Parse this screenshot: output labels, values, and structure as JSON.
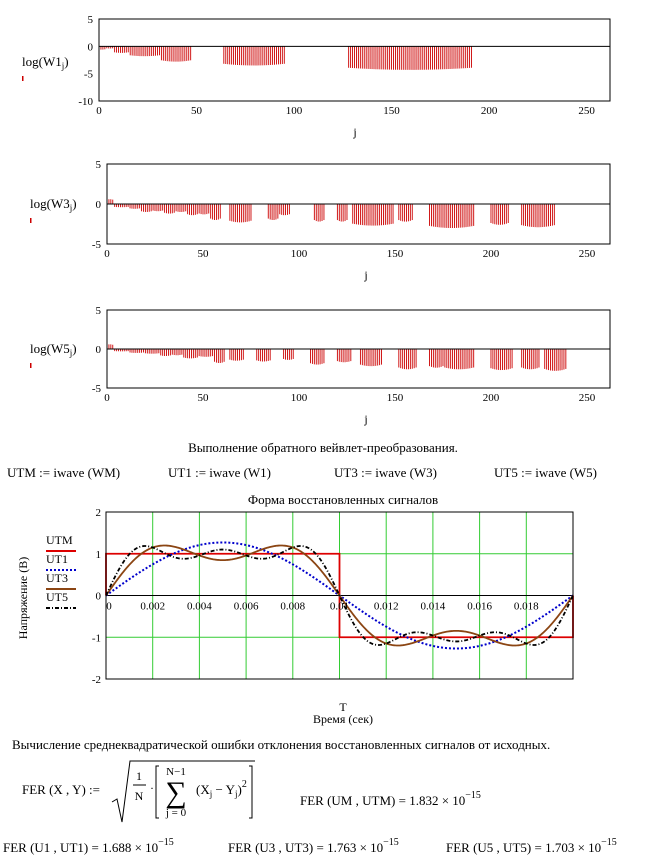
{
  "chart_data": [
    {
      "type": "bar",
      "name": "W1",
      "ylabel_func": "log",
      "ylabel_arg": "W1",
      "ylabel_sub": "j",
      "xlabel": "j",
      "xlim": [
        0,
        262
      ],
      "ylim": [
        -10,
        5
      ],
      "xticks": [
        "0",
        "50",
        "100",
        "150",
        "200",
        "250"
      ],
      "yticks": [
        "5",
        "0",
        "-5",
        "-10"
      ],
      "color": "#cc0000",
      "segments": [
        {
          "from": 0,
          "to": 3,
          "depth": 0.6
        },
        {
          "from": 4,
          "to": 7,
          "depth": 0.4
        },
        {
          "from": 8,
          "to": 15,
          "depth": 1.2
        },
        {
          "from": 16,
          "to": 31,
          "depth": 1.8
        },
        {
          "from": 32,
          "to": 47,
          "depth": 2.8
        },
        {
          "from": 64,
          "to": 95,
          "depth": 3.5
        },
        {
          "from": 128,
          "to": 191,
          "depth": 4.3
        }
      ]
    },
    {
      "type": "bar",
      "name": "W3",
      "ylabel_func": "log",
      "ylabel_arg": "W3",
      "ylabel_sub": "j",
      "xlabel": "j",
      "xlim": [
        0,
        262
      ],
      "ylim": [
        -5,
        5
      ],
      "xticks": [
        "0",
        "50",
        "100",
        "150",
        "200",
        "250"
      ],
      "yticks": [
        "5",
        "0",
        "-5"
      ],
      "color": "#cc0000",
      "segments": [
        {
          "from": 0,
          "to": 3,
          "depth": -0.6
        },
        {
          "from": 4,
          "to": 11,
          "depth": 0.4
        },
        {
          "from": 12,
          "to": 17,
          "depth": 0.6
        },
        {
          "from": 18,
          "to": 23,
          "depth": 1.0
        },
        {
          "from": 24,
          "to": 29,
          "depth": 0.9
        },
        {
          "from": 30,
          "to": 35,
          "depth": 1.2
        },
        {
          "from": 36,
          "to": 41,
          "depth": 1.0
        },
        {
          "from": 42,
          "to": 47,
          "depth": 1.4
        },
        {
          "from": 48,
          "to": 53,
          "depth": 1.3
        },
        {
          "from": 54,
          "to": 59,
          "depth": 2.0
        },
        {
          "from": 64,
          "to": 75,
          "depth": 2.3
        },
        {
          "from": 84,
          "to": 89,
          "depth": 2.0
        },
        {
          "from": 90,
          "to": 95,
          "depth": 1.4
        },
        {
          "from": 108,
          "to": 113,
          "depth": 2.2
        },
        {
          "from": 120,
          "to": 125,
          "depth": 2.2
        },
        {
          "from": 128,
          "to": 149,
          "depth": 2.7
        },
        {
          "from": 152,
          "to": 159,
          "depth": 2.2
        },
        {
          "from": 168,
          "to": 191,
          "depth": 3.0
        },
        {
          "from": 200,
          "to": 209,
          "depth": 2.6
        },
        {
          "from": 216,
          "to": 233,
          "depth": 2.9
        }
      ]
    },
    {
      "type": "bar",
      "name": "W5",
      "ylabel_func": "log",
      "ylabel_arg": "W5",
      "ylabel_sub": "j",
      "xlabel": "j",
      "xlim": [
        0,
        262
      ],
      "ylim": [
        -5,
        5
      ],
      "xticks": [
        "0",
        "50",
        "100",
        "150",
        "200",
        "250"
      ],
      "yticks": [
        "5",
        "0",
        "-5"
      ],
      "color": "#cc0000",
      "segments": [
        {
          "from": 0,
          "to": 3,
          "depth": -0.6
        },
        {
          "from": 4,
          "to": 11,
          "depth": 0.3
        },
        {
          "from": 12,
          "to": 19,
          "depth": 0.5
        },
        {
          "from": 20,
          "to": 27,
          "depth": 0.6
        },
        {
          "from": 28,
          "to": 33,
          "depth": 0.9
        },
        {
          "from": 34,
          "to": 39,
          "depth": 0.8
        },
        {
          "from": 40,
          "to": 47,
          "depth": 1.2
        },
        {
          "from": 48,
          "to": 55,
          "depth": 1.0
        },
        {
          "from": 56,
          "to": 61,
          "depth": 1.8
        },
        {
          "from": 64,
          "to": 71,
          "depth": 1.5
        },
        {
          "from": 78,
          "to": 85,
          "depth": 1.6
        },
        {
          "from": 92,
          "to": 97,
          "depth": 1.4
        },
        {
          "from": 106,
          "to": 113,
          "depth": 2.0
        },
        {
          "from": 120,
          "to": 127,
          "depth": 1.7
        },
        {
          "from": 132,
          "to": 143,
          "depth": 2.2
        },
        {
          "from": 152,
          "to": 161,
          "depth": 2.6
        },
        {
          "from": 168,
          "to": 175,
          "depth": 2.4
        },
        {
          "from": 176,
          "to": 191,
          "depth": 2.6
        },
        {
          "from": 200,
          "to": 211,
          "depth": 2.7
        },
        {
          "from": 216,
          "to": 225,
          "depth": 2.6
        },
        {
          "from": 228,
          "to": 239,
          "depth": 2.8
        }
      ]
    },
    {
      "type": "line",
      "title": "Форма восстановленных сигналов",
      "xlabel_top": "T",
      "xlabel": "Время (сек)",
      "ylabel": "Напряжение (В)",
      "xlim": [
        0,
        0.02
      ],
      "ylim": [
        -2,
        2
      ],
      "xticks": [
        "0",
        "0.002",
        "0.004",
        "0.006",
        "0.008",
        "0.01",
        "0.012",
        "0.014",
        "0.016",
        "0.018"
      ],
      "yticks": [
        "2",
        "1",
        "0",
        "-1",
        "-2"
      ],
      "grid": true,
      "legend_position": "left",
      "series": [
        {
          "name": "UTM",
          "color": "#dd0000",
          "style": "solid"
        },
        {
          "name": "UT1",
          "color": "#0000cc",
          "style": "dotted"
        },
        {
          "name": "UT3",
          "color": "#8b4513",
          "style": "solid"
        },
        {
          "name": "UT5",
          "color": "#000000",
          "style": "dashdot"
        }
      ]
    }
  ],
  "text": {
    "heading_inverse": "Выполнение обратного вейвлет-преобразования.",
    "assign": [
      {
        "lhs": "UTM",
        "rhs": "iwave (WM)"
      },
      {
        "lhs": "UT1",
        "rhs": "iwave (W1)"
      },
      {
        "lhs": "UT3",
        "rhs": "iwave (W3)"
      },
      {
        "lhs": "UT5",
        "rhs": "iwave (W5)"
      }
    ],
    "assign_op": ":=",
    "heading_error": "Вычисление среднеквадратической ошибки отклонения восстановленных сигналов от исходных.",
    "fer_def_lhs": "FER (X , Y)",
    "fer_formula": {
      "one": "1",
      "N": "N",
      "upper": "N−1",
      "lower": "j = 0",
      "body": "X",
      "minus": "−",
      "body2": "Y",
      "sub": "j",
      "pow": "2"
    },
    "results": [
      {
        "lhs": "FER (UM , UTM)",
        "mant": "1.832",
        "exp": "−15"
      },
      {
        "lhs": "FER (U1 , UT1)",
        "mant": "1.688",
        "exp": "−15"
      },
      {
        "lhs": "FER (U3 , UT3)",
        "mant": "1.763",
        "exp": "−15"
      },
      {
        "lhs": "FER (U5 , UT5)",
        "mant": "1.703",
        "exp": "−15"
      }
    ],
    "times10": "× 10"
  }
}
